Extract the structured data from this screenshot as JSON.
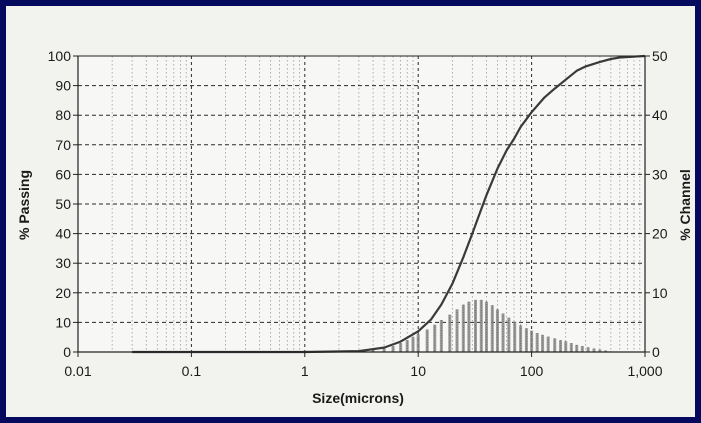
{
  "colors": {
    "border": "#050a5e",
    "background": "#f2f2ef",
    "grid": "#2a2a2a",
    "curve": "#3a3a3a",
    "bars": "#8a8a8a",
    "text": "#1a1a1a"
  },
  "chart_data": {
    "type": "line",
    "title": "",
    "xlabel": "Size(microns)",
    "ylabel": "% Passing",
    "y2label": "% Channel",
    "xscale": "log",
    "xlim": [
      0.01,
      1000
    ],
    "ylim": [
      0,
      100
    ],
    "y2lim": [
      0,
      50
    ],
    "grid": true,
    "x_tick_labels": [
      "0.01",
      "0.1",
      "1",
      "10",
      "100",
      "1,000"
    ],
    "y_tick_labels": [
      "0",
      "10",
      "20",
      "30",
      "40",
      "50",
      "60",
      "70",
      "80",
      "90",
      "100"
    ],
    "y2_tick_labels": [
      "0",
      "10",
      "20",
      "30",
      "40",
      "50"
    ],
    "series": [
      {
        "axis": "left",
        "kind": "line",
        "x": [
          0.03,
          0.1,
          1,
          3,
          5,
          7,
          10,
          13,
          16,
          20,
          25,
          30,
          35,
          40,
          50,
          60,
          70,
          80,
          100,
          130,
          160,
          200,
          250,
          300,
          400,
          500,
          600,
          800,
          1000
        ],
        "y": [
          0,
          0,
          0,
          0.3,
          1.5,
          3.5,
          7,
          11,
          16,
          23,
          32,
          40,
          47,
          53,
          62,
          68,
          72,
          76,
          81,
          86,
          89,
          92,
          95,
          96.5,
          98,
          99,
          99.5,
          99.8,
          100
        ]
      },
      {
        "axis": "right",
        "kind": "bar",
        "x": [
          4,
          5,
          6,
          7,
          8,
          9,
          10,
          12,
          14,
          16,
          19,
          22,
          25,
          28,
          32,
          36,
          40,
          45,
          50,
          56,
          63,
          71,
          80,
          90,
          100,
          112,
          125,
          140,
          160,
          180,
          200,
          224,
          250,
          280,
          315,
          355,
          400,
          450,
          500
        ],
        "y": [
          0.3,
          0.6,
          1.0,
          1.5,
          2.0,
          2.5,
          3.0,
          3.8,
          4.6,
          5.4,
          6.3,
          7.2,
          8.0,
          8.5,
          8.8,
          8.8,
          8.5,
          7.9,
          7.2,
          6.5,
          5.8,
          5.1,
          4.5,
          4.0,
          3.6,
          3.2,
          2.9,
          2.6,
          2.3,
          2.0,
          1.8,
          1.5,
          1.2,
          1.0,
          0.8,
          0.6,
          0.4,
          0.25,
          0.1
        ]
      }
    ]
  }
}
